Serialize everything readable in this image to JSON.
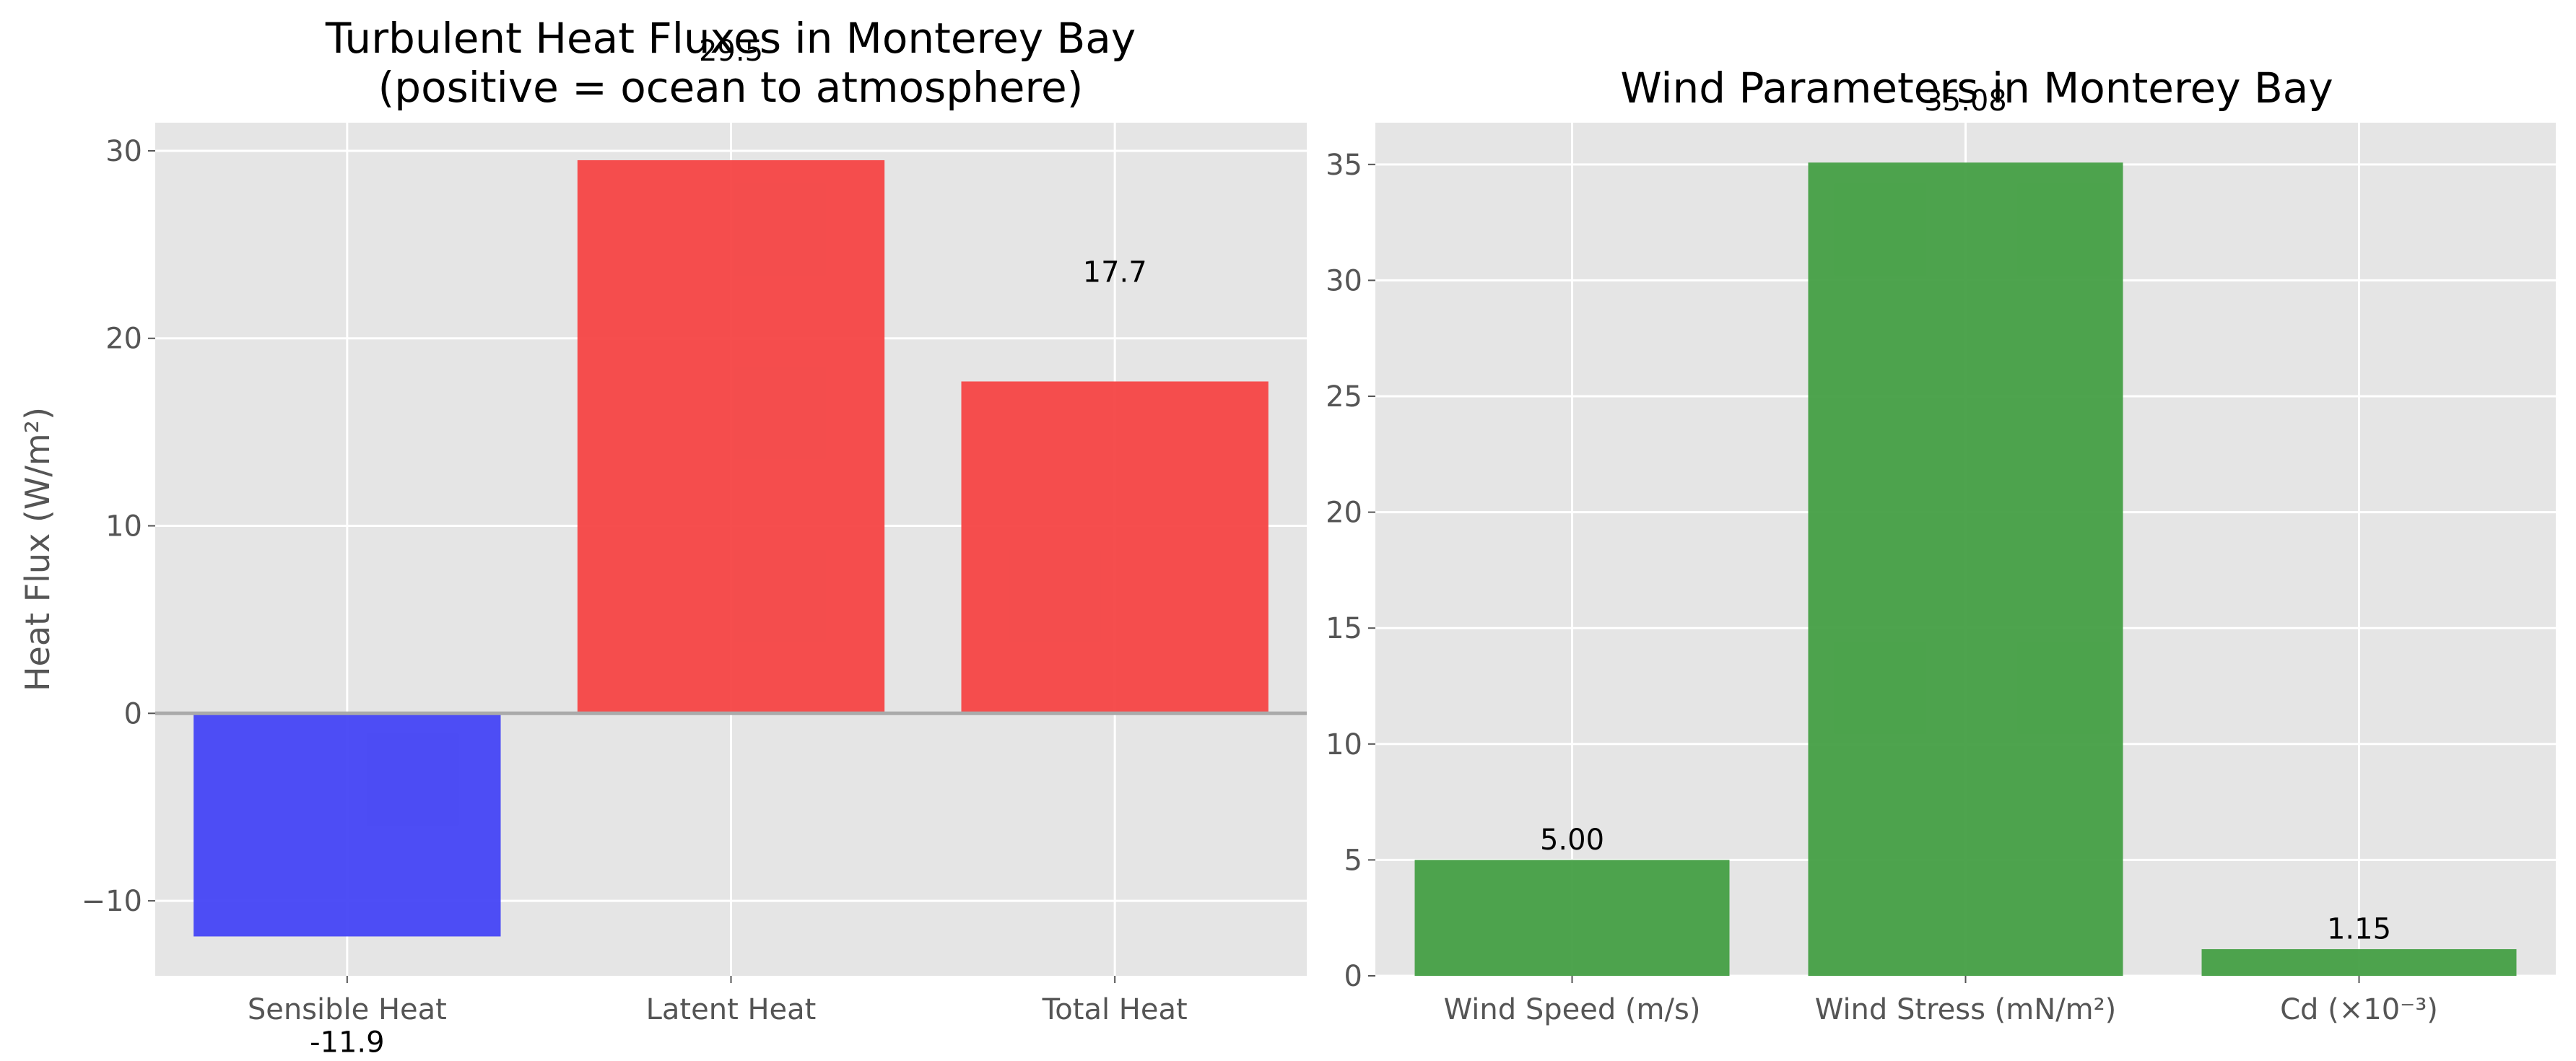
{
  "chart_data": [
    {
      "type": "bar",
      "title": "Turbulent Heat Fluxes in Monterey Bay\n(positive = ocean to atmosphere)",
      "xlabel": "",
      "ylabel": "Heat Flux (W/m²)",
      "categories": [
        "Sensible Heat",
        "Latent Heat",
        "Total Heat"
      ],
      "values": [
        -11.9,
        29.5,
        17.7
      ],
      "data_labels": [
        "-11.9",
        "29.5",
        "17.7"
      ],
      "colors": [
        "#4444f5",
        "#f54545",
        "#f54545"
      ],
      "ylim": [
        -14,
        31.5
      ],
      "yticks": [
        -10,
        0,
        10,
        20,
        30
      ],
      "ytick_labels": [
        "−10",
        "0",
        "10",
        "20",
        "30"
      ],
      "zero_line": true,
      "grid": true
    },
    {
      "type": "bar",
      "title": "Wind Parameters in Monterey Bay",
      "xlabel": "",
      "ylabel": "",
      "categories": [
        "Wind Speed (m/s)",
        "Wind Stress (mN/m²)",
        "Cd (×10⁻³)"
      ],
      "values": [
        5.0,
        35.08,
        1.15
      ],
      "data_labels": [
        "5.00",
        "35.08",
        "1.15"
      ],
      "colors": [
        "#449f44",
        "#449f44",
        "#449f44"
      ],
      "ylim": [
        0,
        36.8
      ],
      "yticks": [
        0,
        5,
        10,
        15,
        20,
        25,
        30,
        35
      ],
      "ytick_labels": [
        "0",
        "5",
        "10",
        "15",
        "20",
        "25",
        "30",
        "35"
      ],
      "zero_line": false,
      "grid": true
    }
  ]
}
